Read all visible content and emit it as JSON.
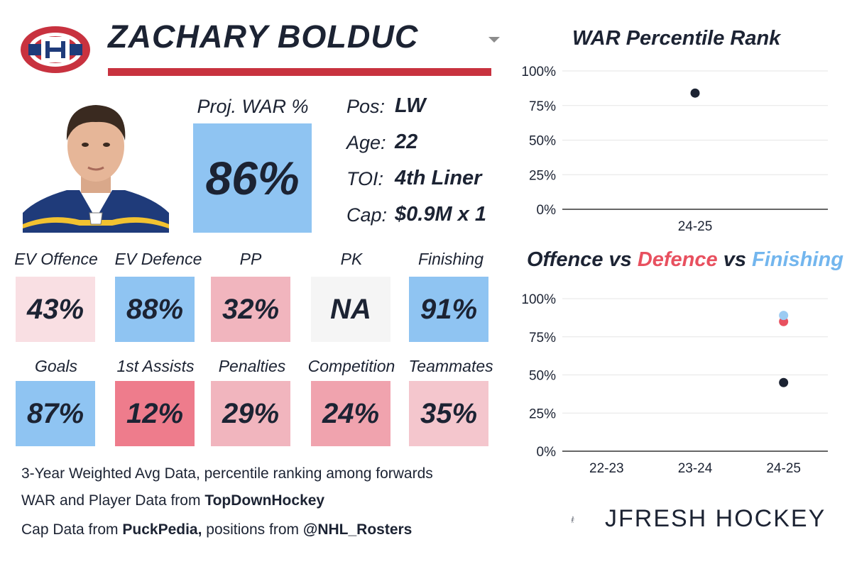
{
  "player": {
    "name": "ZACHARY BOLDUC",
    "proj_war_label": "Proj. WAR %",
    "proj_war_value": "86%",
    "proj_war_color": "#8fc4f2",
    "info": [
      {
        "label": "Pos:",
        "value": "LW"
      },
      {
        "label": "Age:",
        "value": "22"
      },
      {
        "label": "TOI:",
        "value": "4th Liner"
      },
      {
        "label": "Cap:",
        "value": "$0.9M x 1"
      }
    ]
  },
  "tiles_row1": [
    {
      "label": "EV Offence",
      "value": "43%",
      "color": "#f9dfe3"
    },
    {
      "label": "EV Defence",
      "value": "88%",
      "color": "#8fc4f2"
    },
    {
      "label": "PP",
      "value": "32%",
      "color": "#f1b5be"
    },
    {
      "label": "PK",
      "value": "NA",
      "color": "#f5f5f5"
    },
    {
      "label": "Finishing",
      "value": "91%",
      "color": "#8fc4f2"
    }
  ],
  "tiles_row2": [
    {
      "label": "Goals",
      "value": "87%",
      "color": "#8fc4f2"
    },
    {
      "label": "1st Assists",
      "value": "12%",
      "color": "#ee7c8c"
    },
    {
      "label": "Penalties",
      "value": "29%",
      "color": "#f1b5be"
    },
    {
      "label": "Competition",
      "value": "24%",
      "color": "#f0a3ae"
    },
    {
      "label": "Teammates",
      "value": "35%",
      "color": "#f4c6cd"
    }
  ],
  "footer": {
    "line1": "3-Year Weighted Avg Data, percentile ranking among forwards",
    "line2_prefix": "WAR and Player Data from ",
    "line2_bold": "TopDownHockey",
    "line3_prefix": "Cap Data from ",
    "line3_bold1": "PuckPedia,",
    "line3_mid": " positions from ",
    "line3_bold2": "@NHL_Rosters"
  },
  "brand": {
    "name": "JFRESH HOCKEY"
  },
  "icons": {
    "team_logo": "montreal-canadiens-logo-icon",
    "dropdown": "dropdown-arrow-icon",
    "brand_mark": "jfresh-hockey-stick-icon"
  },
  "chart_data": [
    {
      "type": "scatter",
      "title": "WAR Percentile Rank",
      "categories": [
        "24-25"
      ],
      "series": [
        {
          "values": [
            84
          ],
          "color": "#1c2333"
        }
      ],
      "yticks": [
        "100%",
        "75%",
        "50%",
        "25%",
        "0%"
      ],
      "ylim": [
        0,
        100
      ],
      "grid": true
    },
    {
      "type": "scatter",
      "title_parts": [
        {
          "text": "Offence",
          "color": "#1c2333"
        },
        {
          "text": " vs ",
          "color": "#1c2333"
        },
        {
          "text": "Defence",
          "color": "#e8505f"
        },
        {
          "text": " vs ",
          "color": "#1c2333"
        },
        {
          "text": "Finishing",
          "color": "#73b6ee"
        }
      ],
      "categories": [
        "22-23",
        "23-24",
        "24-25"
      ],
      "series": [
        {
          "name": "Offence",
          "values": [
            null,
            null,
            45
          ],
          "color": "#1c2333"
        },
        {
          "name": "Defence",
          "values": [
            null,
            null,
            85
          ],
          "color": "#e8505f"
        },
        {
          "name": "Finishing",
          "values": [
            null,
            null,
            89
          ],
          "color": "#9ccbf2"
        }
      ],
      "yticks": [
        "100%",
        "75%",
        "50%",
        "25%",
        "0%"
      ],
      "ylim": [
        0,
        100
      ],
      "grid": true
    }
  ]
}
